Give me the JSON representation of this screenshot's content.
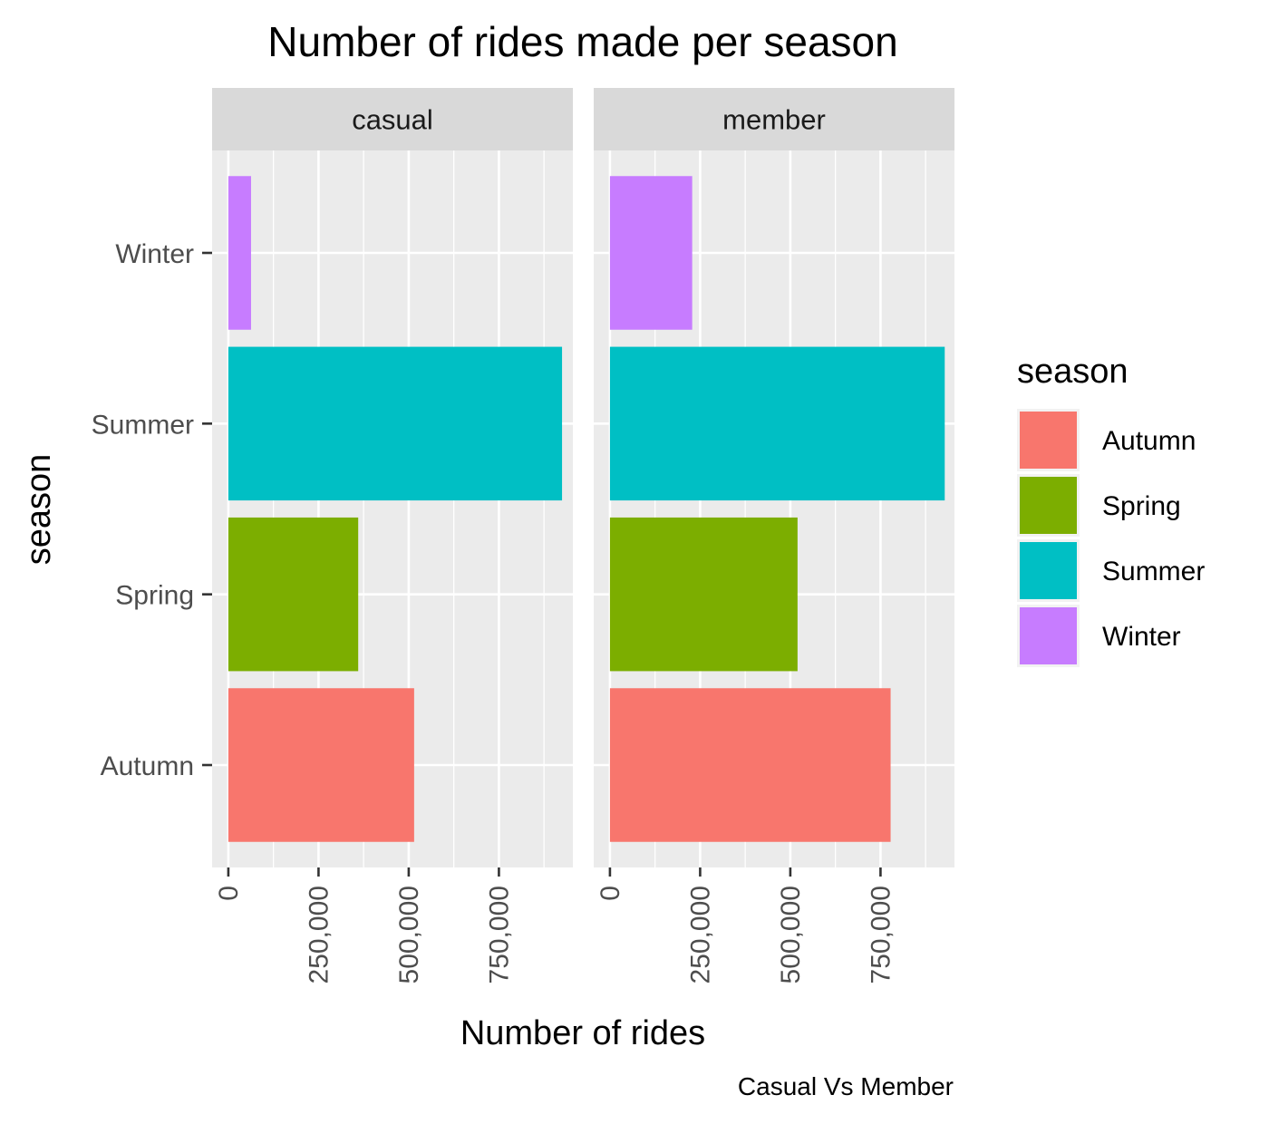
{
  "chart_data": {
    "type": "bar",
    "orientation": "horizontal",
    "title": "Number of rides made per season",
    "caption": "Casual Vs Member",
    "xlabel": "Number of rides",
    "ylabel": "season",
    "categories": [
      "Autumn",
      "Spring",
      "Summer",
      "Winter"
    ],
    "x_ticks": [
      0,
      250000,
      500000,
      750000
    ],
    "x_tick_labels": [
      "0",
      "250,000",
      "500,000",
      "750,000"
    ],
    "xlim": [
      -45000,
      955000
    ],
    "grid": true,
    "legend": {
      "title": "season",
      "placement": "right",
      "entries": [
        "Autumn",
        "Spring",
        "Summer",
        "Winter"
      ]
    },
    "colors": {
      "Autumn": "#F8766D",
      "Spring": "#7CAE00",
      "Summer": "#00BFC4",
      "Winter": "#C77CFF"
    },
    "facets": [
      {
        "label": "casual",
        "values": {
          "Autumn": 515000,
          "Spring": 360000,
          "Summer": 925000,
          "Winter": 63000
        }
      },
      {
        "label": "member",
        "values": {
          "Autumn": 778000,
          "Spring": 520000,
          "Summer": 928000,
          "Winter": 228000
        }
      }
    ]
  }
}
